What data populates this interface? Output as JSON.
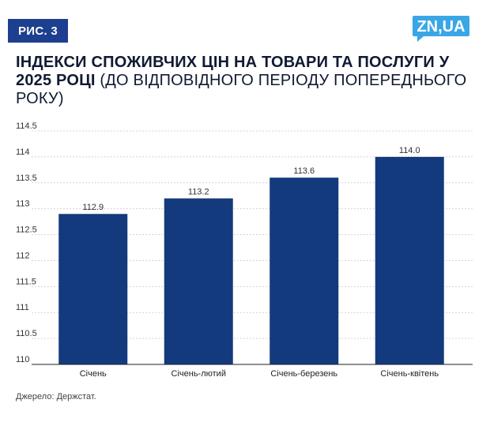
{
  "header": {
    "figure_label": "РИС. 3",
    "logo_text": "ZN,UA",
    "title_bold": "ІНДЕКСИ СПОЖИВЧИХ ЦІН НА ТОВАРИ ТА ПОСЛУГИ У 2025 РОЦІ",
    "title_rest": "(ДО ВІДПОВІДНОГО ПЕРІОДУ ПОПЕРЕДНЬОГО РОКУ)"
  },
  "colors": {
    "bar": "#133a7c",
    "badge": "#1d3f8f",
    "logo": "#3aa6e6",
    "grid": "#d4d4d4",
    "text": "#101a33"
  },
  "chart_data": {
    "type": "bar",
    "categories": [
      "Січень",
      "Січень-лютий",
      "Січень-березень",
      "Січень-квітень"
    ],
    "values": [
      112.9,
      113.2,
      113.6,
      114.0
    ],
    "value_labels": [
      "112.9",
      "113.2",
      "113.6",
      "114.0"
    ],
    "title": "ІНДЕКСИ СПОЖИВЧИХ ЦІН НА ТОВАРИ ТА ПОСЛУГИ У 2025 РОЦІ (ДО ВІДПОВІДНОГО ПЕРІОДУ ПОПЕРЕДНЬОГО РОКУ)",
    "xlabel": "",
    "ylabel": "",
    "ylim": [
      110,
      114.5
    ],
    "yticks": [
      110,
      110.5,
      111,
      111.5,
      112,
      112.5,
      113,
      113.5,
      114,
      114.5
    ],
    "ytick_labels": [
      "110",
      "110.5",
      "111",
      "111.5",
      "112",
      "112.5",
      "113",
      "113.5",
      "114",
      "114.5"
    ],
    "grid": true
  },
  "footer": {
    "source": "Джерело: Держстат."
  }
}
